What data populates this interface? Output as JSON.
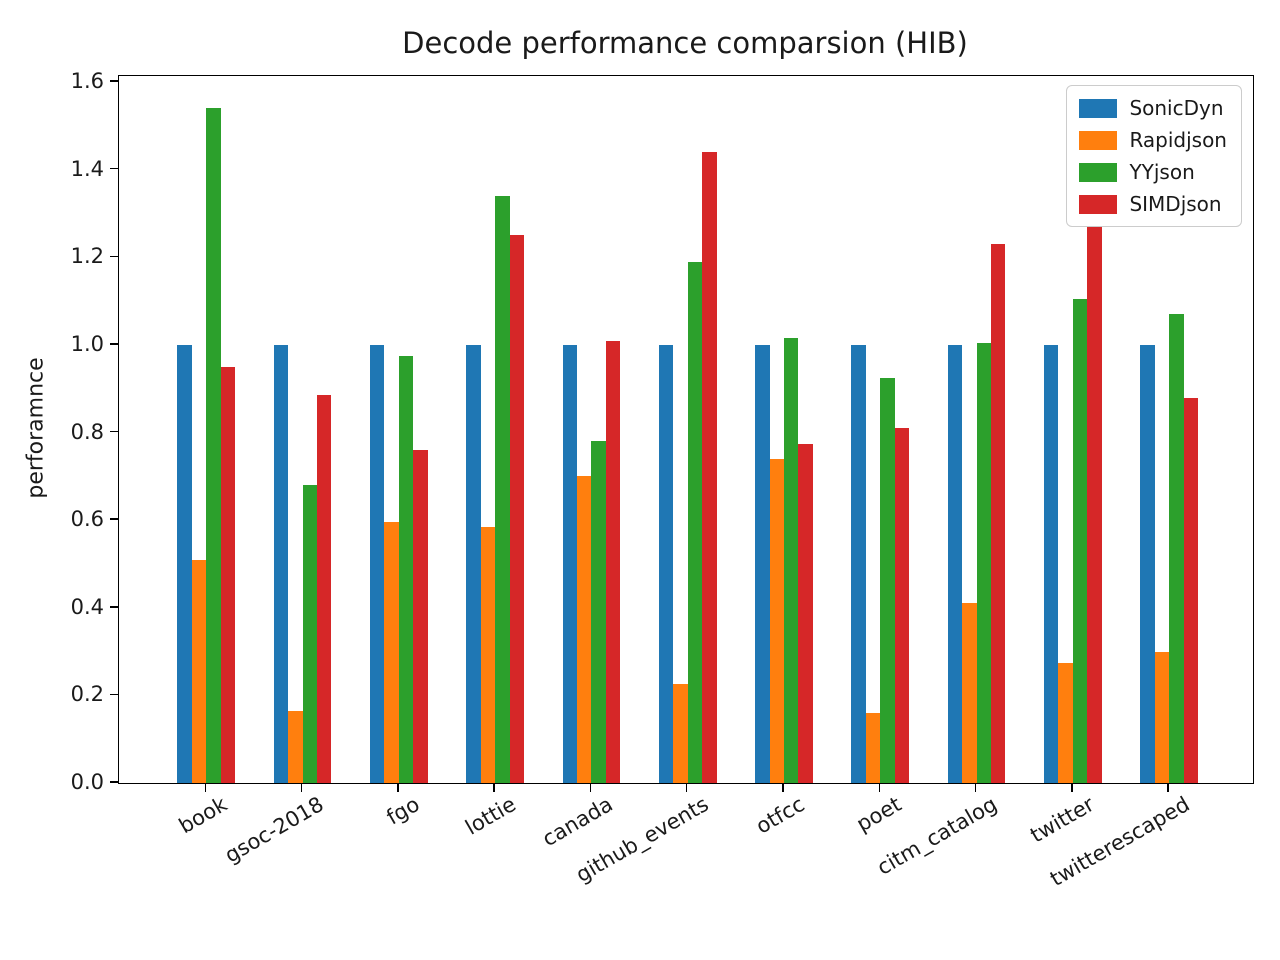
{
  "chart_data": {
    "type": "bar",
    "title": "Decode performance comparsion (HIB)",
    "ylabel": "perforamnce",
    "xlabel": "",
    "ylim": [
      0,
      1.614
    ],
    "ytick_labels": [
      "0.0",
      "0.2",
      "0.4",
      "0.6",
      "0.8",
      "1.0",
      "1.2",
      "1.4",
      "1.6"
    ],
    "ytick_values": [
      0.0,
      0.2,
      0.4,
      0.6,
      0.8,
      1.0,
      1.2,
      1.4,
      1.6
    ],
    "grid": false,
    "legend_position": "upper right",
    "xtick_rotation_deg": 30,
    "categories": [
      "book",
      "gsoc-2018",
      "fgo",
      "lottie",
      "canada",
      "github_events",
      "otfcc",
      "poet",
      "citm_catalog",
      "twitter",
      "twitterescaped"
    ],
    "series": [
      {
        "name": "SonicDyn",
        "color": "#1f77b4",
        "values": [
          1.0,
          1.0,
          1.0,
          1.0,
          1.0,
          1.0,
          1.0,
          1.0,
          1.0,
          1.0,
          1.0
        ]
      },
      {
        "name": "Rapidjson",
        "color": "#ff7f0e",
        "values": [
          0.51,
          0.165,
          0.595,
          0.585,
          0.7,
          0.225,
          0.74,
          0.16,
          0.41,
          0.275,
          0.3
        ]
      },
      {
        "name": "YYjson",
        "color": "#2ca02c",
        "values": [
          1.54,
          0.68,
          0.975,
          1.34,
          0.78,
          1.19,
          1.015,
          0.925,
          1.005,
          1.105,
          1.07
        ]
      },
      {
        "name": "SIMDjson",
        "color": "#d62728",
        "values": [
          0.95,
          0.885,
          0.76,
          1.25,
          1.01,
          1.44,
          0.775,
          0.81,
          1.23,
          1.3,
          0.88
        ]
      }
    ]
  }
}
